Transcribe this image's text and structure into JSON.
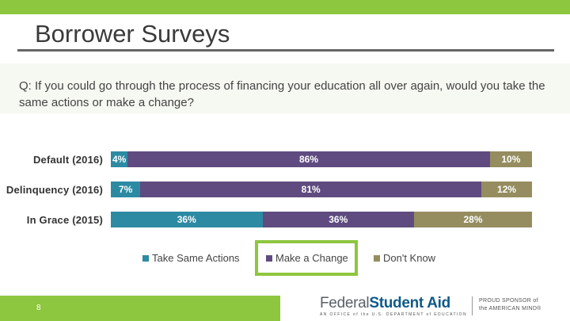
{
  "header": {
    "title": "Borrower Surveys"
  },
  "question": "Q: If you could go through the process of financing your education all over again, would you take the same actions or make a change?",
  "colors": {
    "take_same_actions": "#2d8aa3",
    "make_a_change": "#5f4b80",
    "dont_know": "#958d5f",
    "accent": "#8dc63f"
  },
  "chart_data": {
    "type": "bar",
    "orientation": "horizontal",
    "stacked": true,
    "categories": [
      "Default (2016)",
      "Delinquency (2016)",
      "In Grace (2015)"
    ],
    "series": [
      {
        "name": "Take Same Actions",
        "values": [
          4,
          7,
          36
        ],
        "labels": [
          "4%",
          "7%",
          "36%"
        ]
      },
      {
        "name": "Make a Change",
        "values": [
          86,
          81,
          36
        ],
        "labels": [
          "86%",
          "81%",
          "36%"
        ]
      },
      {
        "name": "Don't Know",
        "values": [
          10,
          12,
          28
        ],
        "labels": [
          "10%",
          "12%",
          "28%"
        ]
      }
    ],
    "xlim": [
      0,
      100
    ],
    "legend": "bottom",
    "grid": false
  },
  "footer": {
    "page_number": "8",
    "logo_name_part1": "Federal",
    "logo_name_part2": "Student Aid",
    "logo_tagline": "AN OFFICE of the U.S. DEPARTMENT of EDUCATION",
    "logo_sponsor_line1": "PROUD SPONSOR of",
    "logo_sponsor_line2": "the AMERICAN MIND®"
  }
}
